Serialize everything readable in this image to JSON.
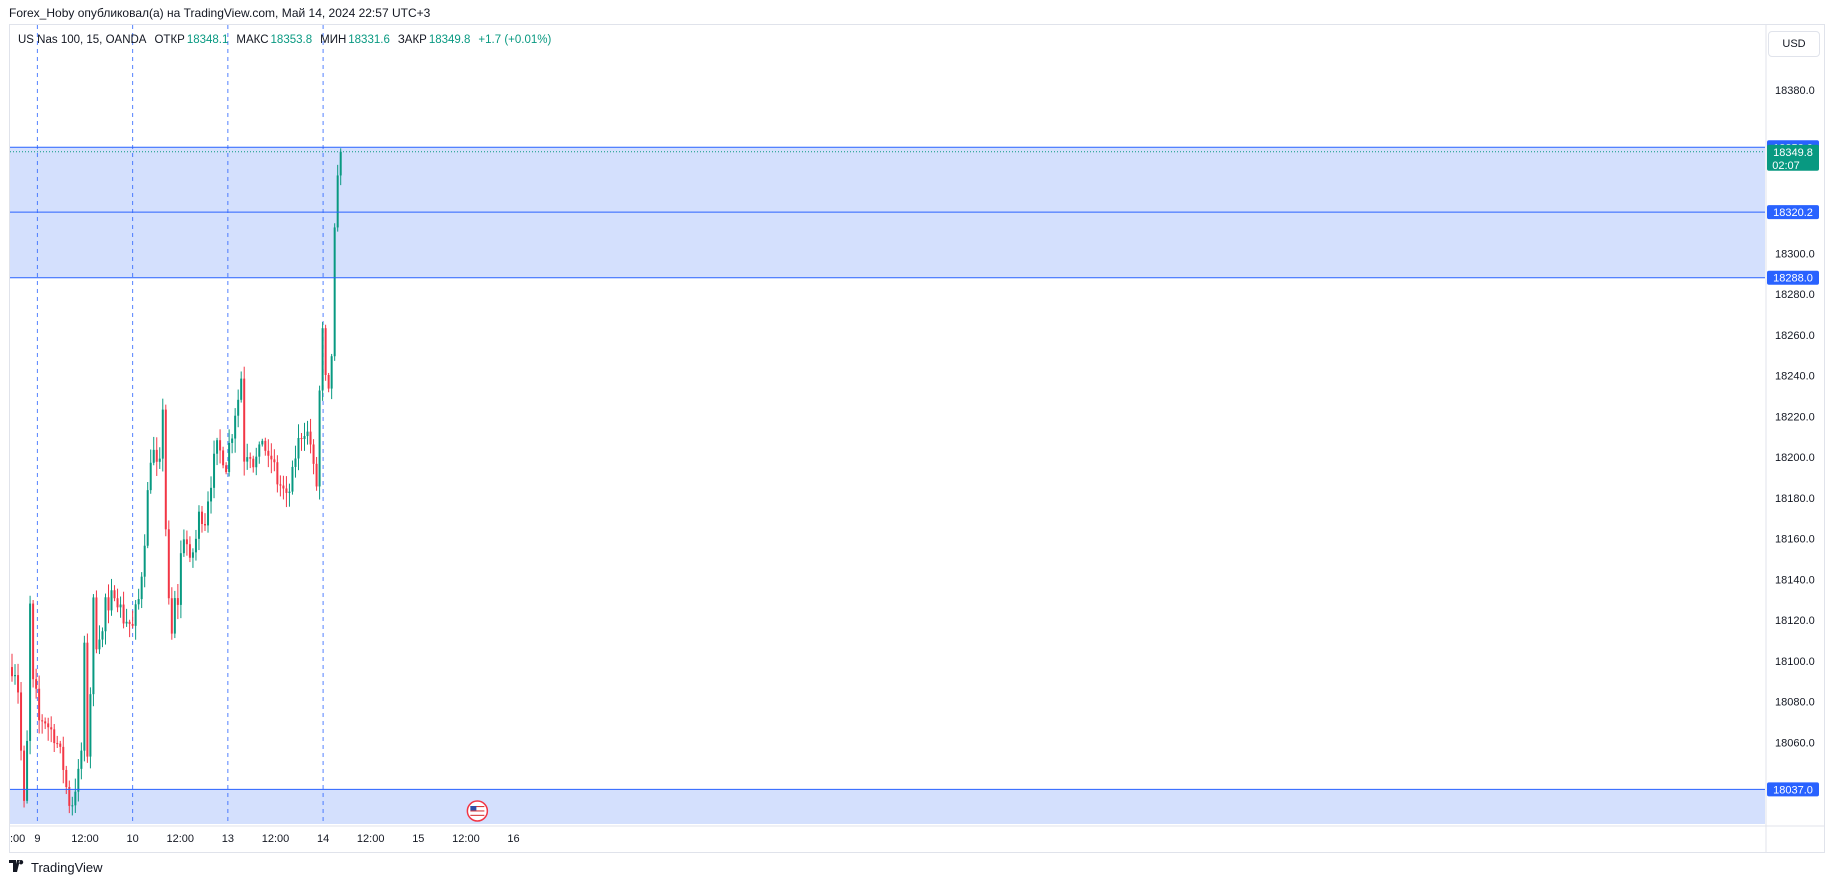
{
  "header": {
    "published": "Forex_Hoby опубликовал(а) на TradingView.com, Май 14, 2024 22:57 UTC+3"
  },
  "legend": {
    "symbol": "US Nas 100, 15, OANDA",
    "open_label": "ОТКР",
    "open_value": "18348.1",
    "high_label": "МАКС",
    "high_value": "18353.8",
    "low_label": "МИН",
    "low_value": "18331.6",
    "close_label": "ЗАКР",
    "close_value": "18349.8",
    "change": "+1.7 (+0.01%)"
  },
  "currency_button": "USD",
  "footer": {
    "brand": "TradingView",
    "logo": "tradingview-logo-icon"
  },
  "colors": {
    "up": "#089981",
    "down": "#f23645",
    "zone_fill": "#d4e0fd",
    "zone_line": "#2962ff",
    "grid_vline": "#2962ff"
  },
  "chart_data": {
    "type": "candlestick",
    "symbol": "US Nas 100",
    "timeframe": "15",
    "y_range": [
      18020,
      18412
    ],
    "y_ticks": [
      "18380.0",
      "18300.0",
      "18280.0",
      "18260.0",
      "18240.0",
      "18220.0",
      "18200.0",
      "18180.0",
      "18160.0",
      "18140.0",
      "18120.0",
      "18100.0",
      "18080.0",
      "18060.0"
    ],
    "y_tick_values": [
      18380,
      18300,
      18280,
      18260,
      18240,
      18220,
      18200,
      18180,
      18160,
      18140,
      18120,
      18100,
      18080,
      18060
    ],
    "x_ticks": [
      {
        "label": ":00",
        "pos": 0.0
      },
      {
        "label": "9",
        "pos": 0.0877
      },
      {
        "label": "12:00",
        "pos": 0.2522
      },
      {
        "label": "10",
        "pos": 0.4167
      },
      {
        "label": "12:00",
        "pos": 0.5811
      },
      {
        "label": "13",
        "pos": 0.7456
      },
      {
        "label": "12:00",
        "pos": 0.9101
      },
      {
        "label": "14",
        "pos": 1.0746
      },
      {
        "label": "12:00",
        "pos": 1.239
      },
      {
        "label": "15",
        "pos": 1.4035
      },
      {
        "label": "12:00",
        "pos": 1.568
      },
      {
        "label": "16",
        "pos": 1.7325
      }
    ],
    "x_axis_note": "x positions are in days from the first visible tick ':00' (8 May 18:00)",
    "day_separators": [
      0.0877,
      0.4167,
      0.7456,
      1.0746
    ],
    "zones": [
      {
        "from": 18288.0,
        "to": 18352.0
      },
      {
        "from": 18020.0,
        "to": 18037.0
      }
    ],
    "levels": [
      {
        "value": 18352.0,
        "label": "18352.0"
      },
      {
        "value": 18320.2,
        "label": "18320.2"
      },
      {
        "value": 18288.0,
        "label": "18288.0"
      },
      {
        "value": 18037.0,
        "label": "18037.0"
      }
    ],
    "last_price": {
      "value": 18349.8,
      "label": "18349.8",
      "countdown": "02:07"
    },
    "event_marker": {
      "icon": "us-flag-icon",
      "x": 1.6075
    },
    "close_path": [
      [
        0.0,
        18097
      ],
      [
        0.01,
        18096
      ],
      [
        0.02,
        18088
      ],
      [
        0.03,
        18065
      ],
      [
        0.036,
        18020
      ],
      [
        0.044,
        18032
      ],
      [
        0.052,
        18058
      ],
      [
        0.058,
        18122
      ],
      [
        0.064,
        18128
      ],
      [
        0.07,
        18098
      ],
      [
        0.076,
        18078
      ],
      [
        0.082,
        18085
      ],
      [
        0.088,
        18074
      ],
      [
        0.094,
        18070
      ],
      [
        0.1,
        18074
      ],
      [
        0.11,
        18068
      ],
      [
        0.118,
        18073
      ],
      [
        0.128,
        18066
      ],
      [
        0.135,
        18066
      ],
      [
        0.145,
        18064
      ],
      [
        0.155,
        18060
      ],
      [
        0.165,
        18055
      ],
      [
        0.175,
        18050
      ],
      [
        0.185,
        18040
      ],
      [
        0.195,
        18032
      ],
      [
        0.205,
        18028
      ],
      [
        0.215,
        18036
      ],
      [
        0.225,
        18042
      ],
      [
        0.232,
        18045
      ],
      [
        0.238,
        18040
      ],
      [
        0.244,
        18100
      ],
      [
        0.25,
        18105
      ],
      [
        0.256,
        18098
      ],
      [
        0.262,
        18040
      ],
      [
        0.268,
        18072
      ],
      [
        0.274,
        18100
      ],
      [
        0.28,
        18130
      ],
      [
        0.29,
        18112
      ],
      [
        0.298,
        18100
      ],
      [
        0.306,
        18128
      ],
      [
        0.314,
        18110
      ],
      [
        0.322,
        18132
      ],
      [
        0.33,
        18118
      ],
      [
        0.34,
        18128
      ],
      [
        0.35,
        18136
      ],
      [
        0.36,
        18134
      ],
      [
        0.37,
        18127
      ],
      [
        0.38,
        18124
      ],
      [
        0.39,
        18118
      ],
      [
        0.4,
        18122
      ],
      [
        0.41,
        18116
      ],
      [
        0.418,
        18116
      ],
      [
        0.428,
        18125
      ],
      [
        0.438,
        18130
      ],
      [
        0.446,
        18140
      ],
      [
        0.452,
        18152
      ],
      [
        0.458,
        18160
      ],
      [
        0.464,
        18170
      ],
      [
        0.47,
        18185
      ],
      [
        0.478,
        18200
      ],
      [
        0.486,
        18205
      ],
      [
        0.494,
        18198
      ],
      [
        0.502,
        18193
      ],
      [
        0.508,
        18200
      ],
      [
        0.514,
        18188
      ],
      [
        0.518,
        18210
      ],
      [
        0.522,
        18232
      ],
      [
        0.528,
        18198
      ],
      [
        0.534,
        18138
      ],
      [
        0.54,
        18132
      ],
      [
        0.546,
        18115
      ],
      [
        0.552,
        18112
      ],
      [
        0.558,
        18135
      ],
      [
        0.566,
        18124
      ],
      [
        0.574,
        18130
      ],
      [
        0.582,
        18150
      ],
      [
        0.59,
        18160
      ],
      [
        0.598,
        18165
      ],
      [
        0.606,
        18155
      ],
      [
        0.612,
        18145
      ],
      [
        0.62,
        18150
      ],
      [
        0.628,
        18156
      ],
      [
        0.636,
        18160
      ],
      [
        0.644,
        18170
      ],
      [
        0.652,
        18174
      ],
      [
        0.662,
        18168
      ],
      [
        0.67,
        18170
      ],
      [
        0.68,
        18185
      ],
      [
        0.69,
        18190
      ],
      [
        0.7,
        18200
      ],
      [
        0.71,
        18205
      ],
      [
        0.72,
        18202
      ],
      [
        0.73,
        18200
      ],
      [
        0.74,
        18196
      ],
      [
        0.75,
        18206
      ],
      [
        0.76,
        18212
      ],
      [
        0.77,
        18222
      ],
      [
        0.778,
        18228
      ],
      [
        0.786,
        18230
      ],
      [
        0.792,
        18240
      ],
      [
        0.798,
        18222
      ],
      [
        0.804,
        18190
      ],
      [
        0.81,
        18200
      ],
      [
        0.818,
        18210
      ],
      [
        0.826,
        18198
      ],
      [
        0.834,
        18198
      ],
      [
        0.842,
        18200
      ],
      [
        0.85,
        18195
      ],
      [
        0.858,
        18208
      ],
      [
        0.866,
        18210
      ],
      [
        0.874,
        18205
      ],
      [
        0.882,
        18196
      ],
      [
        0.89,
        18198
      ],
      [
        0.898,
        18200
      ],
      [
        0.906,
        18195
      ],
      [
        0.914,
        18188
      ],
      [
        0.922,
        18188
      ],
      [
        0.93,
        18185
      ],
      [
        0.938,
        18183
      ],
      [
        0.946,
        18178
      ],
      [
        0.954,
        18182
      ],
      [
        0.962,
        18185
      ],
      [
        0.97,
        18192
      ],
      [
        0.978,
        18200
      ],
      [
        0.986,
        18205
      ],
      [
        0.994,
        18210
      ],
      [
        1.002,
        18212
      ],
      [
        1.01,
        18214
      ],
      [
        1.018,
        18212
      ],
      [
        1.026,
        18210
      ],
      [
        1.034,
        18205
      ],
      [
        1.04,
        18200
      ],
      [
        1.046,
        18176
      ],
      [
        1.052,
        18186
      ],
      [
        1.058,
        18200
      ],
      [
        1.062,
        18225
      ],
      [
        1.066,
        18280
      ],
      [
        1.072,
        18256
      ],
      [
        1.076,
        18275
      ],
      [
        1.082,
        18240
      ],
      [
        1.088,
        18226
      ],
      [
        1.094,
        18230
      ],
      [
        1.1,
        18240
      ],
      [
        1.106,
        18255
      ],
      [
        1.11,
        18290
      ],
      [
        1.116,
        18315
      ],
      [
        1.12,
        18325
      ],
      [
        1.126,
        18336
      ],
      [
        1.132,
        18346
      ],
      [
        1.136,
        18349.8
      ]
    ]
  }
}
